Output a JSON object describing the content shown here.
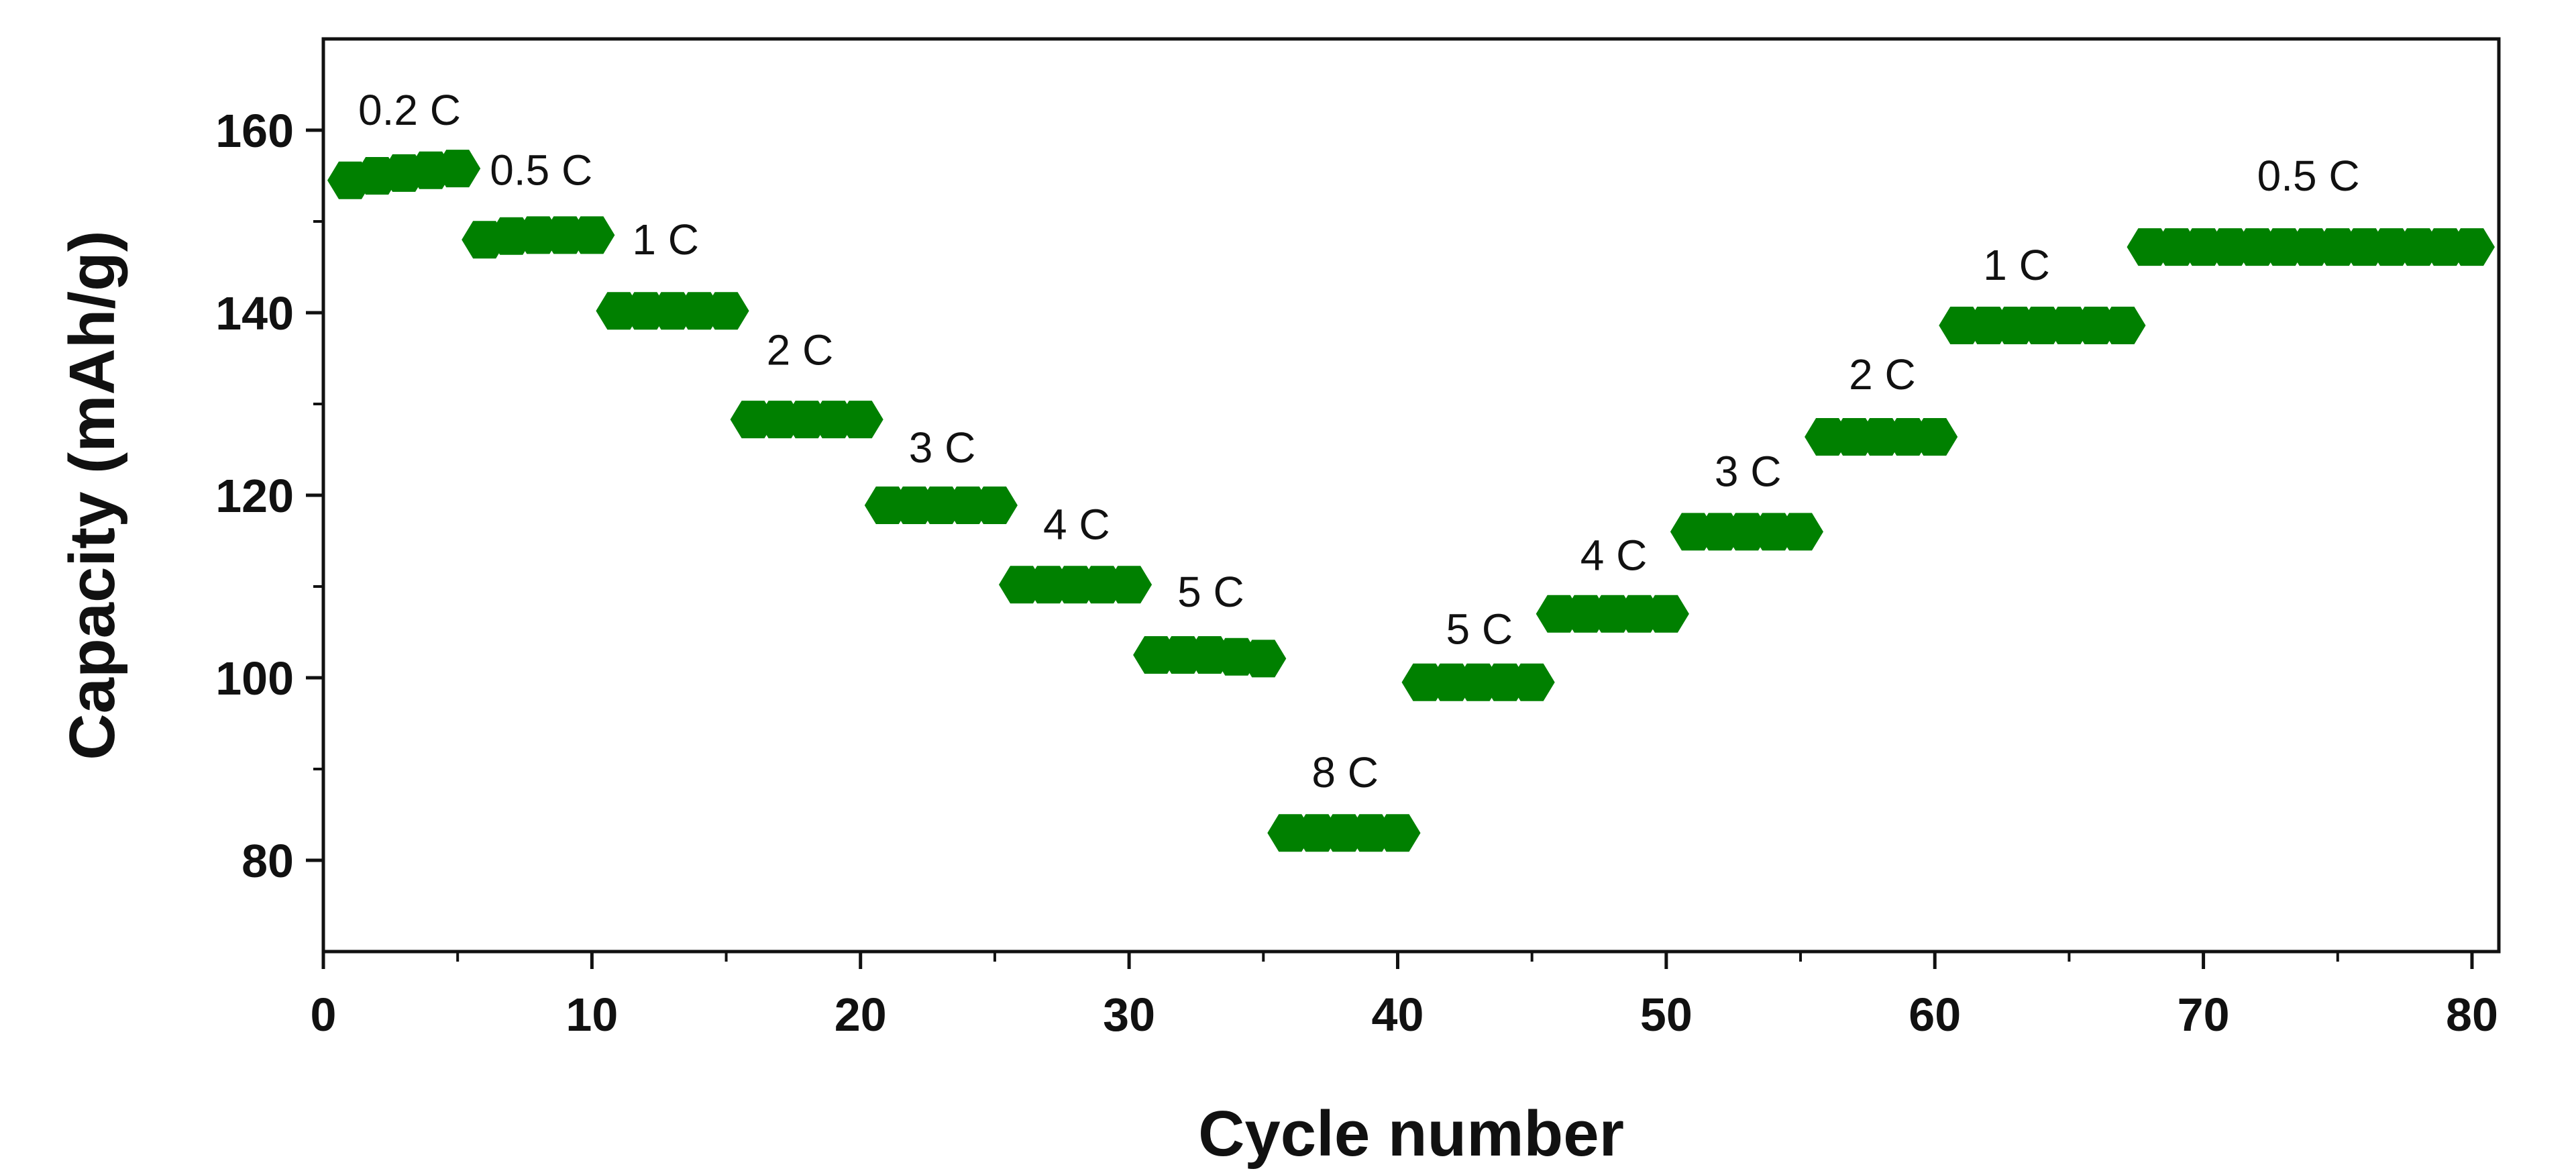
{
  "chart_data": {
    "type": "scatter",
    "title": "",
    "xlabel": "Cycle number",
    "ylabel": "Capacity (mAh/g)",
    "xlim": [
      0,
      81
    ],
    "ylim": [
      70,
      170
    ],
    "xticks": [
      0,
      10,
      20,
      30,
      40,
      50,
      60,
      70,
      80
    ],
    "yticks": [
      80,
      100,
      120,
      140,
      160
    ],
    "grid": false,
    "legend": "none",
    "marker": "hexagon",
    "color": "#008000",
    "series": [
      {
        "x": [
          1,
          2,
          3,
          4,
          5,
          6,
          7,
          8,
          9,
          10,
          11,
          12,
          13,
          14,
          15,
          16,
          17,
          18,
          19,
          20,
          21,
          22,
          23,
          24,
          25,
          26,
          27,
          28,
          29,
          30,
          31,
          32,
          33,
          34,
          35,
          36,
          37,
          38,
          39,
          40,
          41,
          42,
          43,
          44,
          45,
          46,
          47,
          48,
          49,
          50,
          51,
          52,
          53,
          54,
          55,
          56,
          57,
          58,
          59,
          60,
          61,
          62,
          63,
          64,
          65,
          66,
          67,
          68,
          69,
          70,
          71,
          72,
          73,
          74,
          75,
          76,
          77,
          78,
          79,
          80
        ],
        "y": [
          154.5,
          155.0,
          155.3,
          155.6,
          155.8,
          148.0,
          148.4,
          148.5,
          148.5,
          148.5,
          140.2,
          140.2,
          140.2,
          140.2,
          140.2,
          128.3,
          128.3,
          128.3,
          128.3,
          128.3,
          118.9,
          118.9,
          118.9,
          118.9,
          118.9,
          110.2,
          110.2,
          110.2,
          110.2,
          110.2,
          102.5,
          102.5,
          102.5,
          102.3,
          102.1,
          83.0,
          83.0,
          83.0,
          83.0,
          83.0,
          99.5,
          99.5,
          99.5,
          99.5,
          99.5,
          107.0,
          107.0,
          107.0,
          107.0,
          107.0,
          116.0,
          116.0,
          116.0,
          116.0,
          116.0,
          126.4,
          126.4,
          126.4,
          126.4,
          126.4,
          138.6,
          138.6,
          138.6,
          138.6,
          138.6,
          138.6,
          138.6,
          147.2,
          147.2,
          147.2,
          147.2,
          147.2,
          147.2,
          147.2,
          147.2,
          147.2,
          147.2,
          147.2,
          147.2,
          147.2
        ]
      }
    ],
    "annotations": [
      {
        "text": "0.2 C",
        "x": 1.3,
        "y": 160.6
      },
      {
        "text": "0.5 C",
        "x": 6.2,
        "y": 154.0
      },
      {
        "text": "1 C",
        "x": 11.5,
        "y": 146.4
      },
      {
        "text": "2 C",
        "x": 16.5,
        "y": 134.3
      },
      {
        "text": "3 C",
        "x": 21.8,
        "y": 123.6
      },
      {
        "text": "4 C",
        "x": 26.8,
        "y": 115.2
      },
      {
        "text": "5 C",
        "x": 31.8,
        "y": 107.8
      },
      {
        "text": "8 C",
        "x": 36.8,
        "y": 88.0
      },
      {
        "text": "5 C",
        "x": 41.8,
        "y": 103.7
      },
      {
        "text": "4 C",
        "x": 46.8,
        "y": 111.8
      },
      {
        "text": "3 C",
        "x": 51.8,
        "y": 121.0
      },
      {
        "text": "2 C",
        "x": 56.8,
        "y": 131.6
      },
      {
        "text": "1 C",
        "x": 61.8,
        "y": 143.6
      },
      {
        "text": "0.5 C",
        "x": 72.0,
        "y": 153.4
      }
    ]
  }
}
